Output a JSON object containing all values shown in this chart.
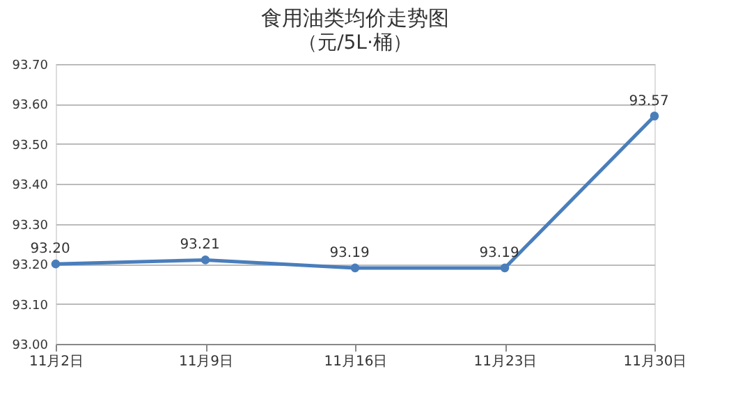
{
  "chart_data": {
    "type": "line",
    "title": "食用油类均价走势图",
    "subtitle": "（元/5L·桶）",
    "categories": [
      "11月2日",
      "11月9日",
      "11月16日",
      "11月23日",
      "11月30日"
    ],
    "series": [
      {
        "color": "#4a7ebb",
        "values": [
          93.2,
          93.21,
          93.19,
          93.19,
          93.57
        ],
        "value_labels": [
          "93.20",
          "93.21",
          "93.19",
          "93.19",
          "93.57"
        ]
      }
    ],
    "ylim": [
      93.0,
      93.7
    ],
    "yticks": [
      {
        "value": 93.0,
        "label": "93.00"
      },
      {
        "value": 93.1,
        "label": "93.10"
      },
      {
        "value": 93.2,
        "label": "93.20"
      },
      {
        "value": 93.3,
        "label": "93.30"
      },
      {
        "value": 93.4,
        "label": "93.40"
      },
      {
        "value": 93.5,
        "label": "93.50"
      },
      {
        "value": 93.6,
        "label": "93.60"
      },
      {
        "value": 93.7,
        "label": "93.70"
      }
    ],
    "grid": "y",
    "marker": "circle",
    "line_style": "solid"
  }
}
